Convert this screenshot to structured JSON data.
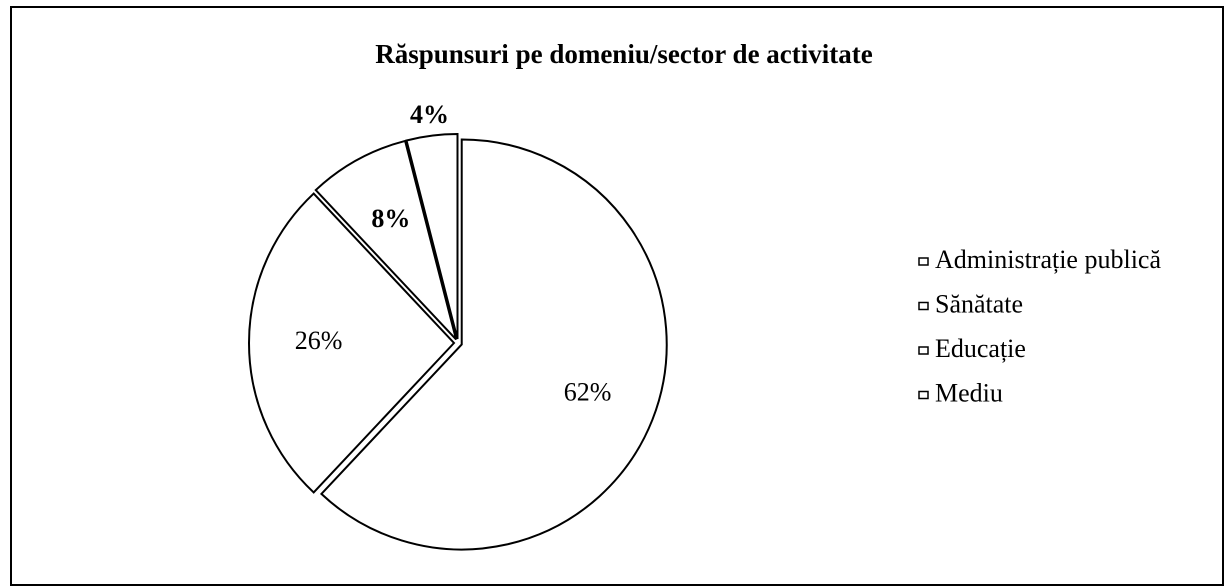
{
  "chart_data": {
    "type": "pie",
    "title": "Răspunsuri pe domeniu/sector de activitate",
    "categories": [
      "Administrație publică",
      "Sănătate",
      "Educație",
      "Mediu"
    ],
    "values": [
      62,
      26,
      8,
      4
    ],
    "value_labels": [
      "62%",
      "26%",
      "8%",
      "4%"
    ],
    "colors": [
      "#ffffff",
      "#ffffff",
      "#ffffff",
      "#ffffff"
    ],
    "legend": "right"
  }
}
